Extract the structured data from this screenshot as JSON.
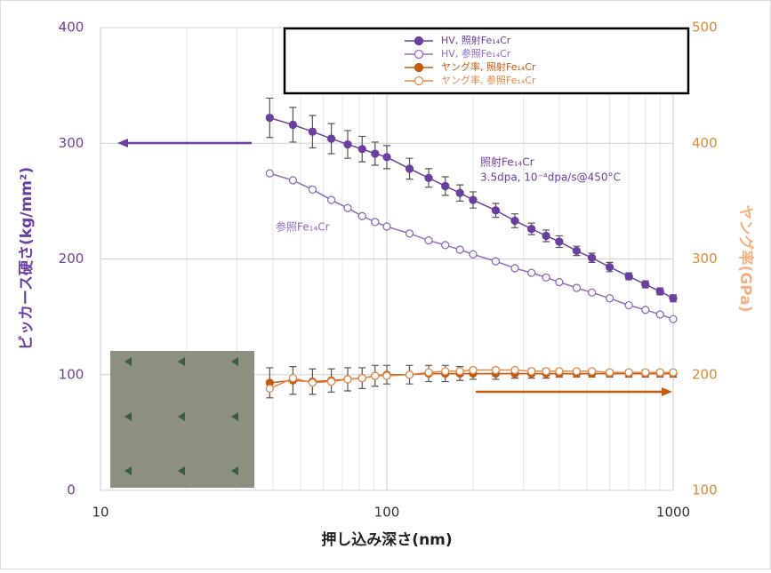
{
  "chart_data": {
    "type": "line",
    "xlabel": "押し込み深さ(nm)",
    "ylabel": "ビッカース硬さ(kg/mm²)",
    "y2label": "ヤング率(GPa)",
    "xscale": "log",
    "xlim": [
      10,
      1000
    ],
    "xticks": [
      10,
      100,
      1000
    ],
    "ylim": [
      0,
      400
    ],
    "yticks": [
      0,
      100,
      200,
      300,
      400
    ],
    "y2lim": [
      100,
      500
    ],
    "y2ticks": [
      100,
      200,
      300,
      400,
      500
    ],
    "grid": true,
    "legend": "top",
    "x": [
      39,
      47,
      55,
      64,
      73,
      82,
      91,
      100,
      120,
      140,
      160,
      180,
      200,
      240,
      280,
      320,
      360,
      400,
      460,
      520,
      600,
      700,
      800,
      900,
      1000
    ],
    "series": [
      {
        "name": "HV, 照射Fe₁₄Cr",
        "color": "#6b3fa0",
        "filled": true,
        "axis": "y",
        "values": [
          322,
          316,
          310,
          304,
          299,
          295,
          291,
          288,
          278,
          270,
          263,
          257,
          251,
          242,
          233,
          226,
          220,
          215,
          207,
          201,
          193,
          185,
          178,
          172,
          166
        ],
        "errors": [
          17,
          15,
          14,
          13,
          12,
          11,
          10,
          10,
          9,
          8,
          8,
          7,
          7,
          6,
          6,
          5,
          5,
          5,
          4,
          4,
          4,
          3,
          3,
          3,
          3
        ]
      },
      {
        "name": "HV, 参照Fe₁₄Cr",
        "color": "#8e6bbf",
        "filled": false,
        "axis": "y",
        "values": [
          274,
          268,
          260,
          251,
          244,
          237,
          232,
          228,
          222,
          216,
          212,
          208,
          204,
          198,
          192,
          188,
          184,
          180,
          175,
          171,
          166,
          160,
          156,
          152,
          148
        ]
      },
      {
        "name": "ヤング率, 照射Fe₁₄Cr",
        "color": "#c55a11",
        "filled": true,
        "axis": "y2",
        "values": [
          193,
          195,
          194,
          195,
          196,
          197,
          199,
          200,
          200,
          201,
          201,
          201,
          201,
          201,
          201,
          201,
          201,
          201,
          201,
          201,
          201,
          201,
          201,
          201,
          201
        ],
        "errors": [
          13,
          12,
          11,
          10,
          10,
          9,
          9,
          8,
          8,
          7,
          7,
          6,
          5,
          5,
          4,
          4,
          4,
          3,
          3,
          3,
          3,
          3,
          3,
          3,
          3
        ]
      },
      {
        "name": "ヤング率, 参照Fe₁₄Cr",
        "color": "#e08a4a",
        "filled": false,
        "axis": "y2",
        "values": [
          188,
          197,
          193,
          194,
          196,
          197,
          199,
          199,
          200,
          202,
          203,
          203,
          204,
          204,
          204,
          203,
          203,
          203,
          203,
          203,
          202,
          202,
          202,
          202,
          202
        ]
      }
    ],
    "annotations": [
      "照射Fe₁₄Cr",
      "3.5dpa, 10⁻⁴dpa/s@450°C",
      "参照Fe₁₄Cr"
    ]
  }
}
